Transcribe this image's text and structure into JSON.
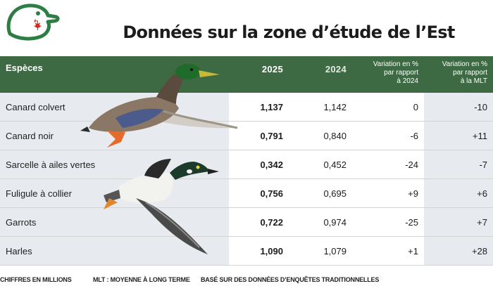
{
  "title": "Données sur la zone d’étude de l’Est",
  "colors": {
    "header_bg": "#3d6a43",
    "brand_green": "#2f7d45",
    "maple_red": "#d52b1e",
    "row_tint": "#e7eaee"
  },
  "table": {
    "headers": {
      "species": "Espèces",
      "y2025": "2025",
      "y2024": "2024",
      "var2024": [
        "Variation en %",
        "par rapport",
        "à 2024"
      ],
      "varmlt": [
        "Variation en %",
        "par rapport",
        "à la MLT"
      ]
    },
    "rows": [
      {
        "species": "Canard colvert",
        "y2025": "1,137",
        "y2024": "1,142",
        "var2024": "0",
        "varmlt": "-10"
      },
      {
        "species": "Canard noir",
        "y2025": "0,791",
        "y2024": "0,840",
        "var2024": "-6",
        "varmlt": "+11"
      },
      {
        "species": "Sarcelle à ailes vertes",
        "y2025": "0,342",
        "y2024": "0,452",
        "var2024": "-24",
        "varmlt": "-7"
      },
      {
        "species": "Fuligule à collier",
        "y2025": "0,756",
        "y2024": "0,695",
        "var2024": "+9",
        "varmlt": "+6"
      },
      {
        "species": "Garrots",
        "y2025": "0,722",
        "y2024": "0,974",
        "var2024": "-25",
        "varmlt": "+7"
      },
      {
        "species": "Harles",
        "y2025": "1,090",
        "y2024": "1,079",
        "var2024": "+1",
        "varmlt": "+28"
      }
    ]
  },
  "footer": {
    "units": "CHIFFRES EN MILLIONS",
    "mlt": "MLT : MOYENNE À LONG TERME",
    "basis": "BASÉ SUR DES DONNÉES D’ENQUÊTES TRADITIONNELLES"
  },
  "icons": {
    "logo": "ducks-unlimited-canada-logo",
    "duck1": "mallard-duck-illustration",
    "duck2": "goldeneye-duck-illustration"
  }
}
